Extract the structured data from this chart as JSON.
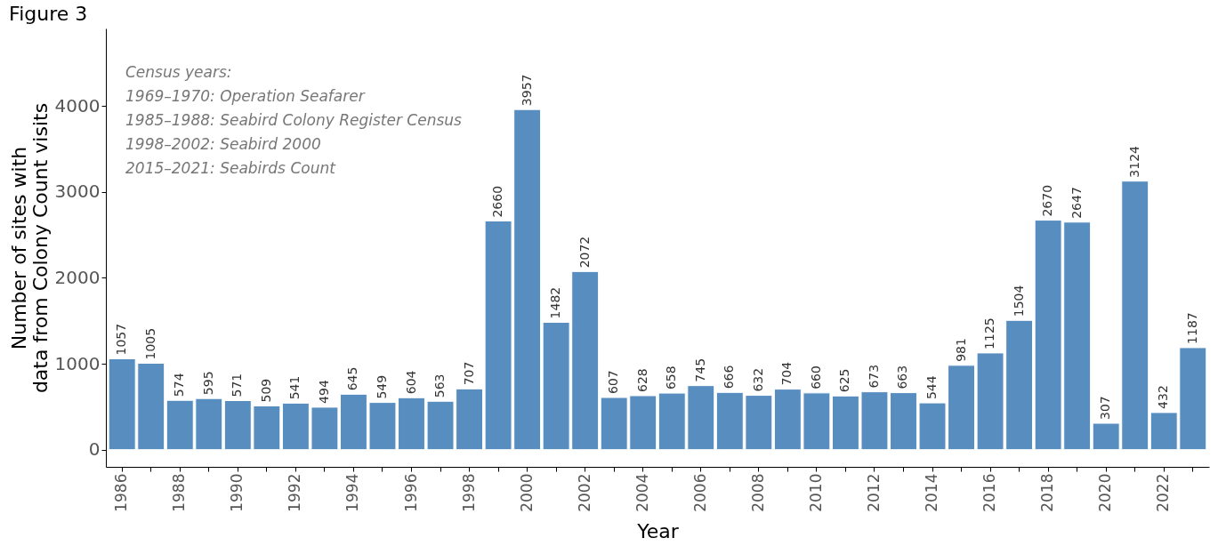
{
  "chart_data": {
    "type": "bar",
    "title": "Figure 3",
    "xlabel": "Year",
    "ylabel": "Number of sites with\ndata from Colony Count visits",
    "categories": [
      "1986",
      null,
      "1988",
      null,
      "1990",
      null,
      "1992",
      null,
      "1994",
      null,
      "1996",
      null,
      "1998",
      null,
      "2000",
      null,
      "2002",
      null,
      "2004",
      null,
      "2006",
      null,
      "2008",
      null,
      "2010",
      null,
      "2012",
      null,
      "2014",
      null,
      "2016",
      null,
      "2018",
      null,
      "2020",
      null,
      "2022",
      null
    ],
    "values": [
      1057,
      1005,
      574,
      595,
      571,
      509,
      541,
      494,
      645,
      549,
      604,
      563,
      707,
      2660,
      3957,
      1482,
      2072,
      607,
      628,
      658,
      745,
      666,
      632,
      704,
      660,
      625,
      673,
      663,
      544,
      981,
      1125,
      1504,
      2670,
      2647,
      307,
      3124,
      432,
      1187
    ],
    "color": "#588dc0",
    "ylim": [
      -200,
      4900
    ],
    "yticks": [
      0,
      1000,
      2000,
      3000,
      4000
    ],
    "grid": false,
    "data_labels": true,
    "annotations": [
      "Census years:",
      "1969–1970:   Operation Seafarer",
      "1985–1988:   Seabird Colony Register Census",
      "1998–2002:   Seabird 2000",
      "2015–2021:   Seabirds Count"
    ]
  }
}
